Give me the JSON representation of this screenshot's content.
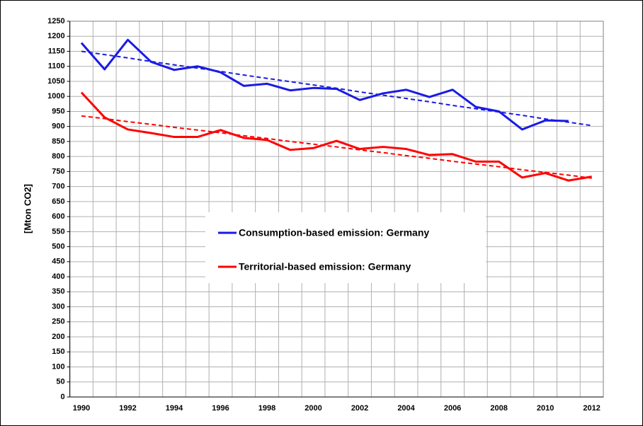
{
  "chart_data": {
    "type": "line",
    "y_label": "[Mton  CO2]",
    "categories": [
      "1990",
      null,
      "1992",
      null,
      "1994",
      null,
      "1996",
      null,
      "1998",
      null,
      "2000",
      null,
      "2002",
      null,
      "2004",
      null,
      "2006",
      null,
      "2008",
      null,
      "2010",
      null,
      "2012"
    ],
    "ylim": [
      0,
      1250
    ],
    "yticks": [
      0,
      50,
      100,
      150,
      200,
      250,
      300,
      350,
      400,
      450,
      500,
      550,
      600,
      650,
      700,
      750,
      800,
      850,
      900,
      950,
      1000,
      1050,
      1100,
      1150,
      1200,
      1250
    ],
    "grid": true,
    "legend": "center",
    "series": [
      {
        "name": "Consumption-based emission: Germany",
        "color": "#1a1ae6",
        "dashed": false,
        "values": [
          1178,
          1090,
          1188,
          1115,
          1088,
          1100,
          1080,
          1035,
          1042,
          1020,
          1028,
          1025,
          988,
          1010,
          1022,
          998,
          1022,
          965,
          950,
          890,
          920,
          918,
          null
        ]
      },
      {
        "name": "Territorial-based emission: Germany",
        "color": "#ff0000",
        "dashed": false,
        "values": [
          1013,
          930,
          890,
          878,
          865,
          865,
          888,
          862,
          855,
          822,
          828,
          852,
          825,
          832,
          825,
          805,
          808,
          783,
          783,
          730,
          745,
          720,
          733
        ]
      },
      {
        "color": "#1a1ae6",
        "dashed": true,
        "values": [
          1150,
          1139,
          1128,
          1116,
          1105,
          1094,
          1083,
          1071,
          1060,
          1049,
          1038,
          1027,
          1015,
          1004,
          993,
          982,
          970,
          959,
          948,
          937,
          925,
          914,
          903
        ]
      },
      {
        "color": "#ff0000",
        "dashed": true,
        "values": [
          935,
          926,
          916,
          907,
          897,
          888,
          879,
          869,
          860,
          850,
          841,
          832,
          822,
          813,
          803,
          794,
          784,
          775,
          766,
          756,
          747,
          738,
          728
        ]
      }
    ]
  }
}
